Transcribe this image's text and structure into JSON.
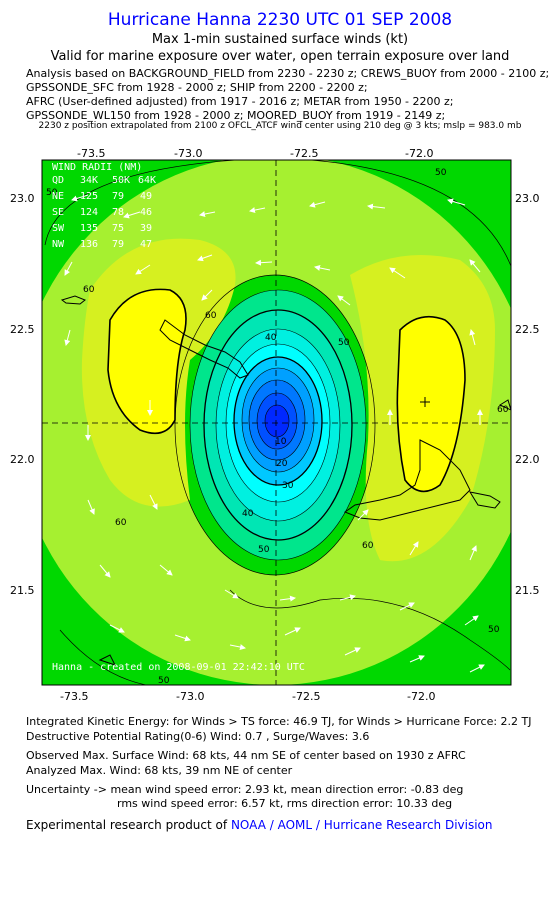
{
  "header": {
    "title": "Hurricane Hanna 2230 UTC 01 SEP 2008",
    "subtitle1": "Max 1-min sustained surface winds (kt)",
    "subtitle2": "Valid for marine exposure over water, open terrain exposure over land"
  },
  "analysis_lines": [
    "Analysis based on  BACKGROUND_FIELD from 2230 - 2230 z;  CREWS_BUOY from 2000 - 2100 z;",
    "GPSSONDE_SFC from 1928 - 2000 z;  SHIP from 2200 - 2200 z;",
    "AFRC (User-defined adjusted) from 1917 - 2016 z;  METAR from 1950 - 2200 z;",
    "GPSSONDE_WL150 from 1928 - 2000 z;  MOORED_BUOY from 1919 - 2149 z;"
  ],
  "position_note": "2230 z position extrapolated from 2100 z OFCL_ATCF wind center using 210 deg @ 3 kts; mslp = 983.0 mb",
  "map": {
    "lon_ticks": [
      "-73.5",
      "-73.0",
      "-72.5",
      "-72.0"
    ],
    "lat_ticks": [
      "23.0",
      "22.5",
      "22.0",
      "21.5"
    ],
    "wind_radii": {
      "title": "WIND RADII (NM)",
      "header": [
        "QD",
        "34K",
        "50K",
        "64K"
      ],
      "rows": [
        [
          "NE",
          "125",
          "79",
          "49"
        ],
        [
          "SE",
          "124",
          "78",
          "46"
        ],
        [
          "SW",
          "135",
          "75",
          "39"
        ],
        [
          "NW",
          "136",
          "79",
          "47"
        ]
      ]
    },
    "contour_labels": [
      "60",
      "60",
      "60",
      "60",
      "50",
      "50",
      "50",
      "50",
      "40",
      "40",
      "30",
      "20",
      "10",
      "60",
      "50",
      "50"
    ],
    "credit": "Hanna  - created on 2008-09-01 22:42:10 UTC",
    "colors": {
      "frame_green": "#00d800",
      "light_green": "#a6f030",
      "yellow_green": "#d6f020",
      "yellow": "#ffff00",
      "teal": "#00e6b4",
      "cyan": "#00ffff",
      "blue_dark": "#0022ff"
    }
  },
  "stats": {
    "ike": "Integrated Kinetic Energy:  for Winds > TS force: 46.9 TJ,  for Winds > Hurricane Force: 2.2 TJ",
    "dpr": "Destructive Potential Rating(0-6)   Wind: 0.7 , Surge/Waves: 3.6",
    "obs_max": "Observed Max. Surface Wind: 68 kts, 44 nm SE of center based on 1930 z AFRC",
    "ana_max": "Analyzed Max. Wind: 68 kts, 39 nm NE of center",
    "unc1": "Uncertainty -> mean wind speed error: 2.93 kt,   mean direction error:  -0.83 deg",
    "unc2": "rms wind speed error: 6.57 kt,   rms direction error: 10.33 deg",
    "footer_prefix": "Experimental research product of",
    "footer_link": "NOAA / AOML / Hurricane Research Division"
  }
}
